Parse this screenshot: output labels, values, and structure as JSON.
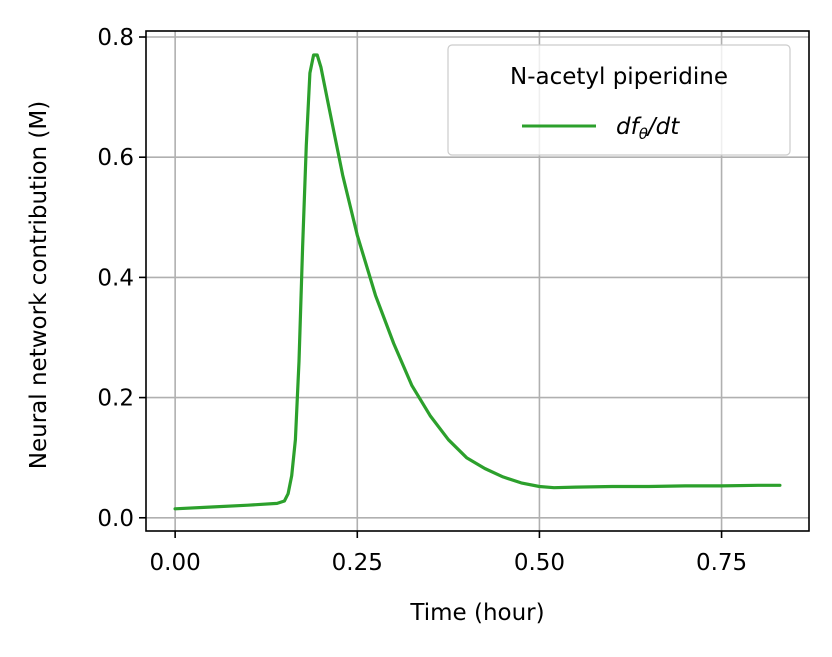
{
  "chart_data": {
    "type": "line",
    "xlabel": "Time (hour)",
    "ylabel": "Neural network contribution (M)",
    "xlim": [
      -0.04,
      0.87
    ],
    "ylim": [
      -0.022,
      0.81
    ],
    "xticks": [
      0.0,
      0.25,
      0.5,
      0.75
    ],
    "xtick_labels": [
      "0.00",
      "0.25",
      "0.50",
      "0.75"
    ],
    "yticks": [
      0.0,
      0.2,
      0.4,
      0.6,
      0.8
    ],
    "ytick_labels": [
      "0.0",
      "0.2",
      "0.4",
      "0.6",
      "0.8"
    ],
    "grid": true,
    "legend": {
      "title": "N-acetyl piperidine",
      "placement": "top-right"
    },
    "series": [
      {
        "name_parts": {
          "main": "df",
          "sub": "θ",
          "tail": "/dt"
        },
        "color": "#2ca02c",
        "x": [
          0.0,
          0.05,
          0.1,
          0.14,
          0.15,
          0.155,
          0.16,
          0.165,
          0.17,
          0.175,
          0.18,
          0.185,
          0.19,
          0.195,
          0.2,
          0.205,
          0.21,
          0.22,
          0.23,
          0.25,
          0.275,
          0.3,
          0.325,
          0.35,
          0.375,
          0.4,
          0.425,
          0.45,
          0.475,
          0.5,
          0.52,
          0.55,
          0.6,
          0.65,
          0.7,
          0.75,
          0.8,
          0.83
        ],
        "y": [
          0.015,
          0.018,
          0.021,
          0.024,
          0.028,
          0.04,
          0.07,
          0.13,
          0.26,
          0.45,
          0.62,
          0.74,
          0.77,
          0.77,
          0.75,
          0.72,
          0.69,
          0.63,
          0.57,
          0.47,
          0.37,
          0.29,
          0.22,
          0.17,
          0.13,
          0.1,
          0.082,
          0.068,
          0.058,
          0.052,
          0.05,
          0.051,
          0.052,
          0.052,
          0.053,
          0.053,
          0.054,
          0.054
        ]
      }
    ]
  }
}
